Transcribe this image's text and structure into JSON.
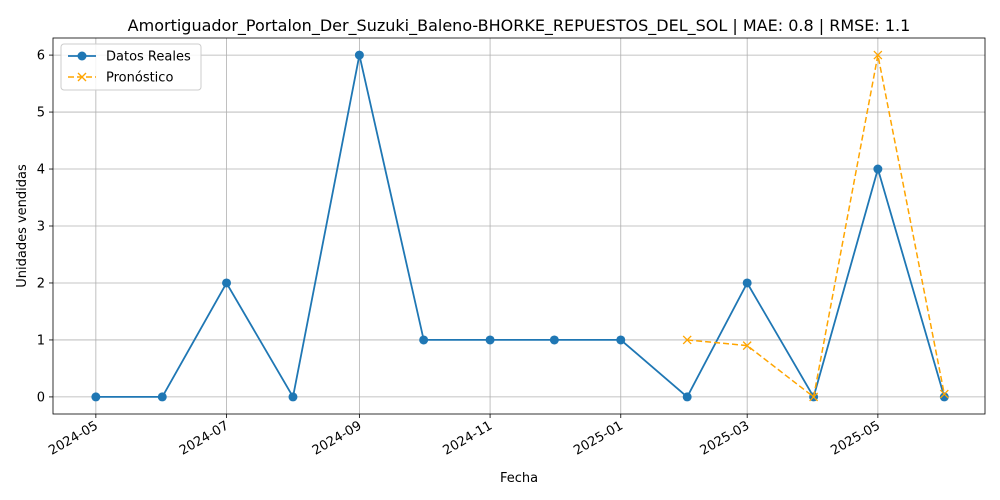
{
  "chart_data": {
    "type": "line",
    "title": "Amortiguador_Portalon_Der_Suzuki_Baleno-BHORKE_REPUESTOS_DEL_SOL | MAE: 0.8 | RMSE: 1.1",
    "xlabel": "Fecha",
    "ylabel": "Unidades vendidas",
    "x_ticks": [
      "2024-05",
      "2024-07",
      "2024-09",
      "2024-11",
      "2025-01",
      "2025-03",
      "2025-05"
    ],
    "y_ticks": [
      0,
      1,
      2,
      3,
      4,
      5,
      6
    ],
    "ylim": [
      -0.3,
      6.3
    ],
    "xlim": [
      "2024-04-11",
      "2025-06-20"
    ],
    "grid": true,
    "legend_position": "top-left",
    "series": [
      {
        "name": "Datos Reales",
        "color": "#1f77b4",
        "marker": "circle",
        "line_style": "solid",
        "x": [
          "2024-05-01",
          "2024-06-01",
          "2024-07-01",
          "2024-08-01",
          "2024-09-01",
          "2024-10-01",
          "2024-11-01",
          "2024-12-01",
          "2025-01-01",
          "2025-02-01",
          "2025-03-01",
          "2025-04-01",
          "2025-05-01",
          "2025-06-01"
        ],
        "values": [
          0,
          0,
          2,
          0,
          6,
          1,
          1,
          1,
          1,
          0,
          2,
          0,
          4,
          0
        ]
      },
      {
        "name": "Pronóstico",
        "color": "#ffa500",
        "marker": "x",
        "line_style": "dashed",
        "x": [
          "2025-02-01",
          "2025-03-01",
          "2025-04-01",
          "2025-05-01",
          "2025-06-01"
        ],
        "values": [
          1,
          0.9,
          0,
          6,
          0.05
        ]
      }
    ]
  }
}
